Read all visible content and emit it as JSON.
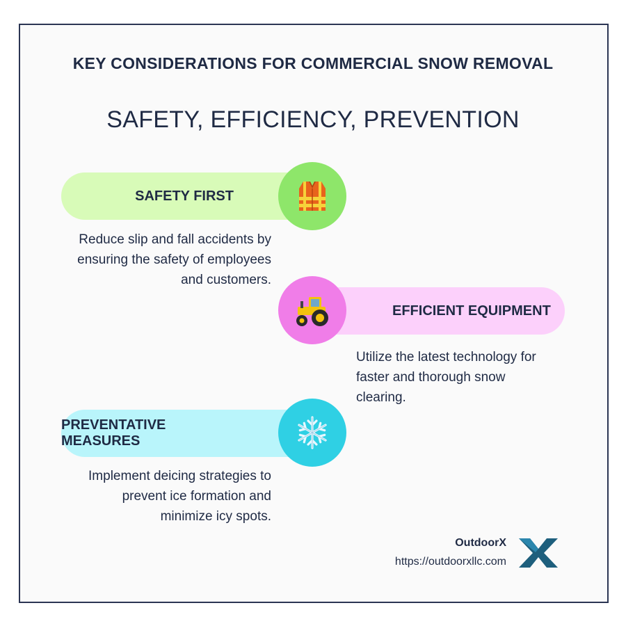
{
  "header": {
    "title": "KEY CONSIDERATIONS FOR COMMERCIAL SNOW REMOVAL",
    "subtitle": "SAFETY, EFFICIENCY, PREVENTION"
  },
  "items": [
    {
      "heading": "SAFETY FIRST",
      "description": "Reduce slip and fall accidents by ensuring the safety of employees and customers.",
      "icon": "safety-vest-icon",
      "pill_color": "#d8fbb8",
      "circle_color": "#8ee66a"
    },
    {
      "heading": "EFFICIENT EQUIPMENT",
      "description": "Utilize the latest technology for faster and thorough snow clearing.",
      "icon": "tractor-icon",
      "pill_color": "#fcd0fb",
      "circle_color": "#f07de8"
    },
    {
      "heading": "PREVENTATIVE MEASURES",
      "description": "Implement deicing strategies to prevent ice formation and minimize icy spots.",
      "icon": "snowflake-icon",
      "pill_color": "#b9f5fb",
      "circle_color": "#2fd0e4"
    }
  ],
  "footer": {
    "brand": "OutdoorX",
    "url": "https://outdoorxllc.com",
    "logo_icon": "outdoorx-logo-icon",
    "logo_color": "#1e5f7d"
  }
}
